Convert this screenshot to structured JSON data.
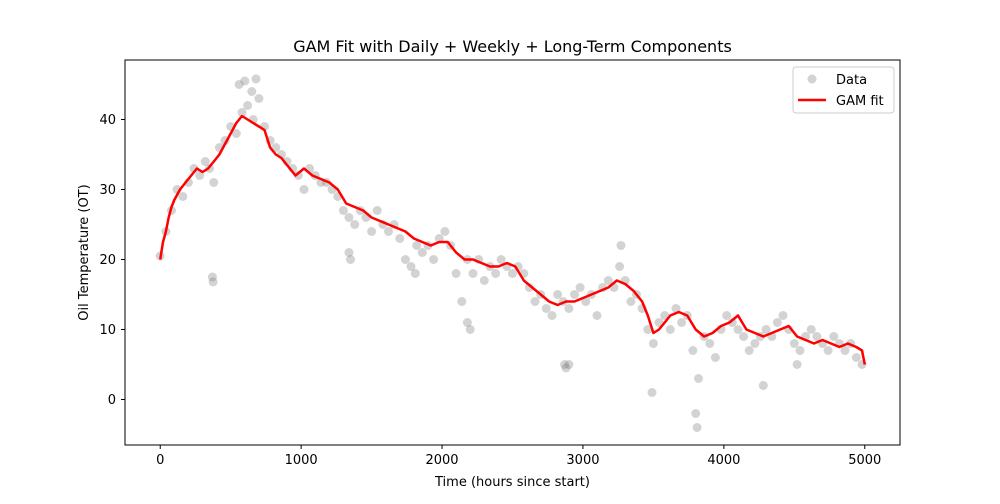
{
  "chart_data": {
    "type": "scatter",
    "title": "GAM Fit with Daily + Weekly + Long-Term Components",
    "xlabel": "Time (hours since start)",
    "ylabel": "Oil Temperature (OT)",
    "xlim": [
      -250,
      5250
    ],
    "ylim": [
      -6.5,
      48.5
    ],
    "xticks": [
      0,
      1000,
      2000,
      3000,
      4000,
      5000
    ],
    "yticks": [
      0,
      10,
      20,
      30,
      40
    ],
    "grid": false,
    "legend_position": "top-right",
    "colors": {
      "data": "#808080",
      "fit": "#ff0000"
    },
    "series": [
      {
        "name": "Data",
        "kind": "scatter",
        "x": [
          0,
          40,
          80,
          120,
          160,
          200,
          240,
          280,
          320,
          350,
          380,
          420,
          460,
          500,
          540,
          580,
          620,
          660,
          700,
          740,
          780,
          820,
          860,
          900,
          940,
          980,
          1020,
          1060,
          1100,
          1140,
          1180,
          1220,
          1260,
          1300,
          1340,
          1380,
          1420,
          1460,
          1500,
          1540,
          1580,
          1620,
          1660,
          1700,
          1740,
          1780,
          1820,
          1860,
          1900,
          1940,
          1980,
          2020,
          2060,
          2100,
          2140,
          2180,
          2220,
          2260,
          2300,
          2340,
          2380,
          2420,
          2460,
          2500,
          2540,
          2580,
          2620,
          2660,
          2700,
          2740,
          2780,
          2820,
          2860,
          2900,
          2940,
          2980,
          3020,
          3060,
          3100,
          3140,
          3180,
          3220,
          3260,
          3300,
          3340,
          3380,
          3420,
          3460,
          3500,
          3540,
          3580,
          3620,
          3660,
          3700,
          3740,
          3780,
          3820,
          3860,
          3900,
          3940,
          3980,
          4020,
          4060,
          4100,
          4140,
          4180,
          4220,
          4260,
          4300,
          4340,
          4380,
          4420,
          4460,
          4500,
          4540,
          4580,
          4620,
          4660,
          4700,
          4740,
          4780,
          4820,
          4860,
          4900,
          4940,
          4980,
          370,
          375,
          1810,
          2180,
          2200,
          2900,
          3800,
          3810,
          3490,
          4520,
          4280,
          3270,
          2870,
          2880,
          1350,
          1340,
          560,
          600,
          680,
          650
        ],
        "y": [
          20.5,
          24,
          27,
          30,
          29,
          31,
          33,
          32,
          34,
          33,
          31,
          36,
          37,
          39,
          38,
          41,
          42,
          40,
          43,
          39,
          37,
          36,
          35,
          34,
          33,
          32,
          30,
          33,
          32,
          31,
          31,
          30,
          29,
          27,
          26,
          25,
          27,
          26,
          24,
          27,
          25,
          24,
          25,
          23,
          20,
          19,
          22,
          21,
          22,
          20,
          23,
          24,
          22,
          18,
          14,
          20,
          18,
          20,
          17,
          19,
          18,
          20,
          19,
          18,
          19,
          18,
          16,
          14,
          15,
          13,
          12,
          15,
          14,
          13,
          15,
          16,
          14,
          15,
          12,
          16,
          17,
          16,
          19,
          17,
          14,
          15,
          13,
          10,
          8,
          11,
          12,
          10,
          13,
          11,
          12,
          7,
          3,
          9,
          8,
          6,
          10,
          12,
          11,
          10,
          9,
          7,
          8,
          9,
          10,
          9,
          11,
          12,
          10,
          8,
          7,
          9,
          10,
          9,
          8,
          7,
          9,
          8,
          7,
          8,
          6,
          5,
          17.5,
          16.8,
          18,
          11,
          10,
          5,
          -2,
          -4,
          1,
          5,
          2,
          22,
          5,
          4.5,
          20,
          21,
          45,
          45.5,
          45.8,
          44
        ],
        "labels": [
          "Data"
        ]
      },
      {
        "name": "GAM fit",
        "kind": "line",
        "x": [
          0,
          20,
          40,
          60,
          80,
          100,
          140,
          180,
          220,
          260,
          300,
          340,
          380,
          420,
          460,
          500,
          540,
          580,
          620,
          660,
          700,
          740,
          780,
          820,
          860,
          900,
          960,
          1020,
          1080,
          1140,
          1200,
          1260,
          1320,
          1380,
          1440,
          1500,
          1560,
          1620,
          1680,
          1740,
          1800,
          1860,
          1920,
          1980,
          2040,
          2100,
          2160,
          2220,
          2280,
          2340,
          2400,
          2460,
          2520,
          2580,
          2640,
          2700,
          2760,
          2820,
          2880,
          2940,
          3000,
          3060,
          3120,
          3180,
          3240,
          3300,
          3360,
          3420,
          3460,
          3500,
          3540,
          3580,
          3620,
          3680,
          3740,
          3800,
          3860,
          3920,
          3980,
          4040,
          4100,
          4160,
          4220,
          4280,
          4340,
          4400,
          4460,
          4520,
          4580,
          4640,
          4700,
          4760,
          4820,
          4880,
          4940,
          4980,
          5000
        ],
        "y": [
          20,
          22.5,
          24,
          26,
          27.5,
          28.5,
          30,
          31,
          32,
          33,
          32.5,
          33,
          34,
          35,
          36.5,
          38,
          39.5,
          40.5,
          40,
          39.5,
          39,
          38.5,
          36,
          35,
          34.5,
          33.5,
          32,
          33,
          32,
          31.5,
          31,
          30,
          28,
          27.5,
          27,
          26,
          25.5,
          25,
          24.5,
          24,
          23,
          22.5,
          22,
          22.5,
          22.5,
          21,
          20,
          20,
          19.5,
          19,
          19,
          19.5,
          19,
          17,
          16,
          15,
          14,
          13.5,
          14,
          14,
          14.5,
          15,
          15.5,
          16,
          17,
          16.5,
          15.5,
          14,
          12,
          9.5,
          10,
          11,
          12,
          12.5,
          12,
          10,
          9,
          9.5,
          10.5,
          11,
          12,
          10,
          9.5,
          9,
          9.5,
          10,
          10.5,
          9,
          8.5,
          8,
          8.5,
          8,
          7.5,
          8,
          7.5,
          7,
          5
        ]
      }
    ]
  }
}
